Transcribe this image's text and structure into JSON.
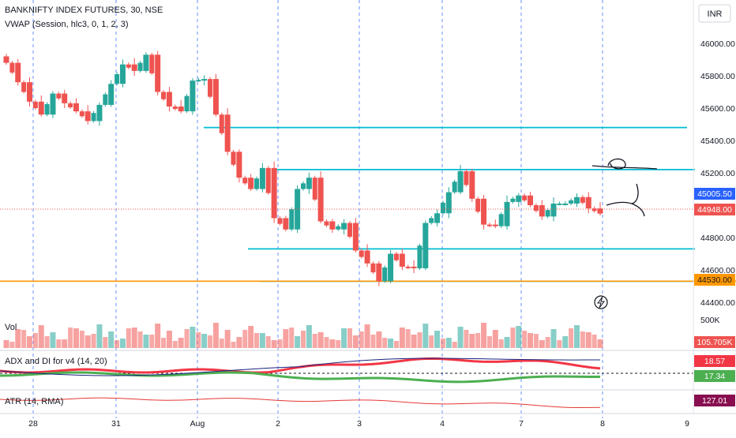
{
  "header": {
    "symbol_title": "BANKNIFTY INDEX FUTURES, 30, NSE",
    "vwap_label": "VWAP (Session, hlc3, 0, 1, 2, 3)",
    "currency_button": "INR"
  },
  "price_axis": {
    "ticks": [
      "46000.00",
      "45800.00",
      "45600.00",
      "45400.00",
      "45200.00",
      "44800.00",
      "44600.00",
      "44400.00"
    ],
    "badges": {
      "vwap": "45005.50",
      "last": "44948.00",
      "support": "44530.00"
    }
  },
  "time_axis": {
    "labels": [
      "28",
      "31",
      "Aug",
      "2",
      "3",
      "4",
      "7",
      "8",
      "9"
    ]
  },
  "panes": {
    "volume": {
      "label": "Vol",
      "scale_label": "500K",
      "value_badge": "105.705K"
    },
    "adx": {
      "label": "ADX and DI for v4 (14, 20)",
      "badge_top": "18.57",
      "badge_mid": "17.34"
    },
    "atr": {
      "label": "ATR (14, RMA)",
      "value_badge": "127.01"
    }
  },
  "colors": {
    "up": "#26a69a",
    "down": "#ef5350",
    "hline": "#00bcd4",
    "support": "#ff9800",
    "vwap_badge": "#2962ff",
    "vol_badge": "#ef5350",
    "atr_badge": "#880e4f"
  },
  "chart_data": {
    "type": "candlestick",
    "title": "BANKNIFTY INDEX FUTURES, 30, NSE",
    "price_range": [
      44330,
      46180
    ],
    "approx_close_path": [
      45880,
      45760,
      45640,
      45560,
      45690,
      45630,
      45580,
      45520,
      45620,
      45750,
      45870,
      45830,
      45930,
      45700,
      45610,
      45580,
      45770,
      45780,
      45560,
      45330,
      45170,
      45100,
      45230,
      44920,
      44850,
      45100,
      45170,
      44900,
      44850,
      44890,
      44720,
      44640,
      44530,
      44700,
      44620,
      44610,
      44890,
      44950,
      45080,
      45210,
      45040,
      44880,
      44870,
      45020,
      45060,
      45000,
      44930,
      45010,
      45010,
      45050,
      44980,
      44948
    ],
    "horizontal_levels": [
      45480,
      45220,
      44730,
      44530
    ],
    "support_level": 44530,
    "last_price": 44948.0,
    "vwap": 45005.5,
    "indicators": {
      "ADX": 18.57,
      "DI": 17.34,
      "ATR": 127.01,
      "Volume": "105.705K"
    }
  }
}
